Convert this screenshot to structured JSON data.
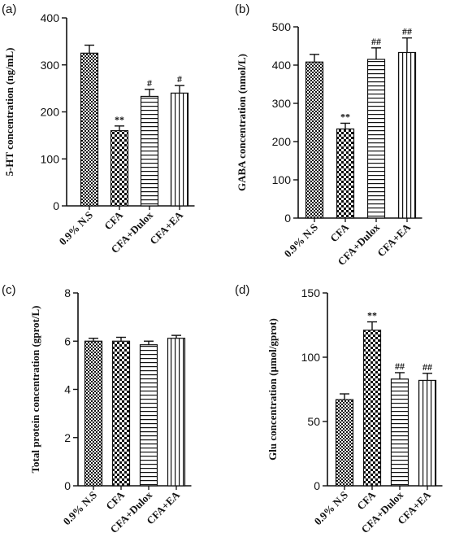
{
  "chart_data": [
    {
      "type": "bar",
      "panel_label": "(a)",
      "ylabel": "5-HT concentration (ng/mL)",
      "ylim": [
        0,
        400
      ],
      "yticks": [
        0,
        100,
        200,
        300,
        400
      ],
      "categories": [
        "0.9% N.S",
        "CFA",
        "CFA+Dulox",
        "CFA+EA"
      ],
      "values": [
        325,
        160,
        233,
        240
      ],
      "errors": [
        17,
        10,
        15,
        16
      ],
      "annotations": [
        "",
        "**",
        "#",
        "#"
      ]
    },
    {
      "type": "bar",
      "panel_label": "(b)",
      "ylabel": "GABA concentration (nmol/L)",
      "ylim": [
        0,
        500
      ],
      "yticks": [
        0,
        100,
        200,
        300,
        400,
        500
      ],
      "categories": [
        "0.9% N.S",
        "CFA",
        "CFA+Dulox",
        "CFA+EA"
      ],
      "values": [
        408,
        233,
        415,
        433
      ],
      "errors": [
        20,
        15,
        30,
        38
      ],
      "annotations": [
        "",
        "**",
        "##",
        "##"
      ]
    },
    {
      "type": "bar",
      "panel_label": "(c)",
      "ylabel": "Total protein concentration (gprot/L)",
      "ylim": [
        0,
        8
      ],
      "yticks": [
        0,
        2,
        4,
        6,
        8
      ],
      "categories": [
        "0.9% N.S",
        "CFA",
        "CFA+Dulox",
        "CFA+EA"
      ],
      "values": [
        6.0,
        6.0,
        5.85,
        6.12
      ],
      "errors": [
        0.12,
        0.16,
        0.15,
        0.12
      ],
      "annotations": [
        "",
        "",
        "",
        ""
      ]
    },
    {
      "type": "bar",
      "panel_label": "(d)",
      "ylabel": "Glu concentration (μmol/gprot)",
      "ylim": [
        0,
        150
      ],
      "yticks": [
        0,
        50,
        100,
        150
      ],
      "categories": [
        "0.9% N.S",
        "CFA",
        "CFA+Dulox",
        "CFA+EA"
      ],
      "values": [
        67,
        121,
        83,
        82
      ],
      "errors": [
        4.5,
        6.5,
        5,
        5.5
      ],
      "annotations": [
        "",
        "**",
        "##",
        "##"
      ]
    }
  ],
  "colors": {
    "ink": "#111111",
    "background": "#ffffff"
  },
  "fill_patterns": [
    "checker-fine",
    "checker-coarse",
    "horizontal-lines",
    "vertical-lines"
  ]
}
